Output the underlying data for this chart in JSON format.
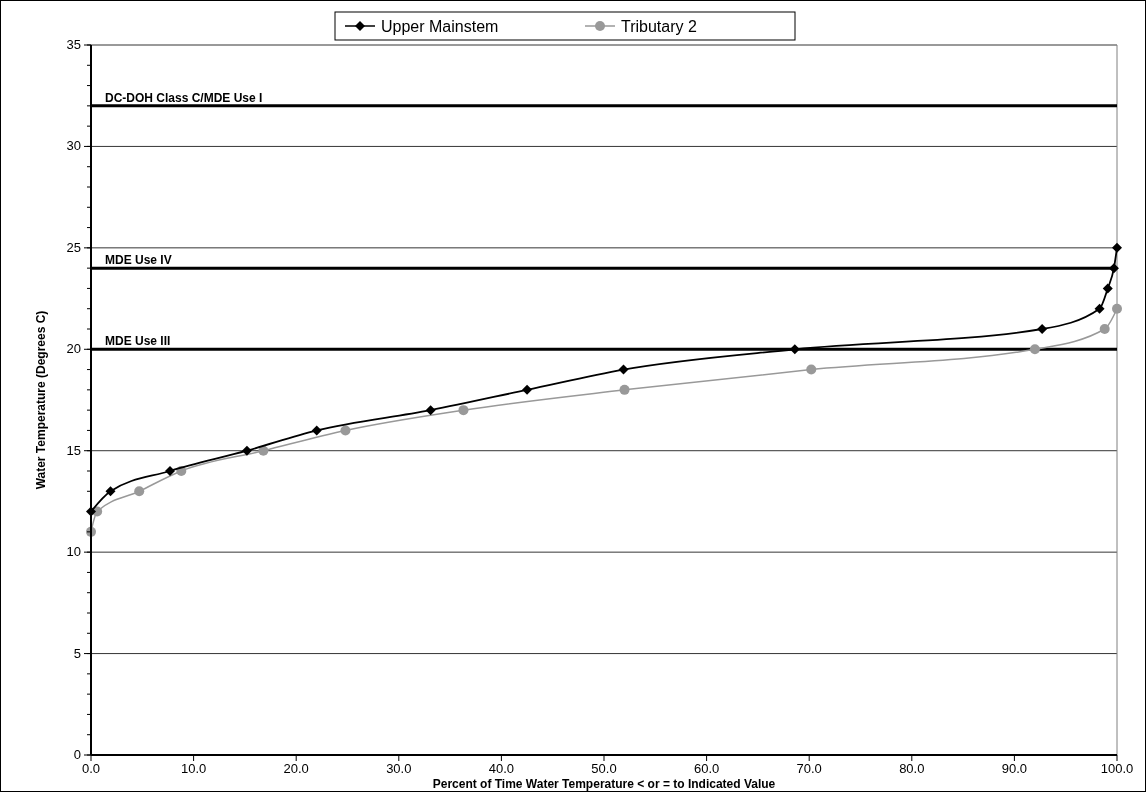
{
  "chart_data": {
    "type": "line",
    "xlabel": "Percent of Time Water Temperature < or = to Indicated Value",
    "ylabel": "Water Temperature (Degrees C)",
    "xlim": [
      0,
      100
    ],
    "xticks": [
      {
        "value": 0,
        "label": "0.0"
      },
      {
        "value": 10,
        "label": "10.0"
      },
      {
        "value": 20,
        "label": "20.0"
      },
      {
        "value": 30,
        "label": "30.0"
      },
      {
        "value": 40,
        "label": "40.0"
      },
      {
        "value": 50,
        "label": "50.0"
      },
      {
        "value": 60,
        "label": "60.0"
      },
      {
        "value": 70,
        "label": "70.0"
      },
      {
        "value": 80,
        "label": "80.0"
      },
      {
        "value": 90,
        "label": "90.0"
      },
      {
        "value": 100,
        "label": "100.0"
      }
    ],
    "ylim": [
      0,
      35
    ],
    "yticks": [
      0,
      5,
      10,
      15,
      20,
      25,
      30,
      35
    ],
    "grid": "y",
    "legend": "top",
    "line_style": "solid",
    "series": [
      {
        "name": "Upper Mainstem",
        "color": "#000000",
        "marker": "diamond",
        "x": [
          0,
          1.9,
          7.7,
          15.2,
          22.0,
          33.1,
          42.5,
          51.9,
          68.6,
          92.7,
          98.3,
          99.1,
          99.7,
          100
        ],
        "values": [
          12,
          13,
          14,
          15,
          16,
          17,
          18,
          19,
          20,
          21,
          22,
          23,
          24,
          25
        ]
      },
      {
        "name": "Tributary 2",
        "color": "#999999",
        "marker": "circle",
        "x": [
          0,
          0.6,
          4.7,
          8.8,
          16.8,
          24.8,
          36.3,
          52.0,
          70.2,
          92.0,
          98.8,
          100
        ],
        "values": [
          11,
          12,
          13,
          14,
          15,
          16,
          17,
          18,
          19,
          20,
          21,
          22
        ]
      }
    ],
    "ref_lines": [
      {
        "axis": "y",
        "value": 32,
        "label": "DC-DOH Class C/MDE Use I",
        "color": "#000000"
      },
      {
        "axis": "y",
        "value": 24,
        "label": "MDE Use IV",
        "color": "#000000"
      },
      {
        "axis": "y",
        "value": 20,
        "label": "MDE Use III",
        "color": "#000000"
      }
    ]
  }
}
